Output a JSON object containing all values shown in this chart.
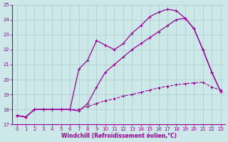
{
  "xlabel": "Windchill (Refroidissement éolien,°C)",
  "xlim": [
    -0.5,
    23.5
  ],
  "ylim": [
    17,
    25
  ],
  "xticks": [
    0,
    1,
    2,
    3,
    4,
    5,
    6,
    7,
    8,
    9,
    10,
    11,
    12,
    13,
    14,
    15,
    16,
    17,
    18,
    19,
    20,
    21,
    22,
    23
  ],
  "yticks": [
    17,
    18,
    19,
    20,
    21,
    22,
    23,
    24,
    25
  ],
  "bg_color": "#cce8e8",
  "grid_color": "#aacccc",
  "line_color": "#990099",
  "line1_x": [
    0,
    1,
    2,
    3,
    4,
    5,
    6,
    7,
    8,
    9,
    10,
    11,
    12,
    13,
    14,
    15,
    16,
    17,
    18,
    19,
    20,
    21,
    22,
    23
  ],
  "line1_y": [
    17.6,
    17.5,
    18.0,
    18.0,
    18.0,
    18.0,
    18.0,
    18.0,
    18.2,
    18.4,
    18.6,
    18.7,
    18.9,
    19.0,
    19.15,
    19.3,
    19.45,
    19.55,
    19.65,
    19.72,
    19.78,
    19.82,
    19.5,
    19.3
  ],
  "line2_x": [
    0,
    1,
    2,
    3,
    4,
    5,
    6,
    7,
    8,
    9,
    10,
    11,
    12,
    13,
    14,
    15,
    16,
    17,
    18,
    19,
    20,
    21,
    22,
    23
  ],
  "line2_y": [
    17.6,
    17.5,
    18.0,
    18.0,
    18.0,
    18.0,
    18.0,
    20.7,
    21.3,
    22.6,
    22.3,
    22.0,
    22.4,
    23.1,
    23.6,
    24.2,
    24.5,
    24.7,
    24.6,
    24.1,
    23.4,
    22.0,
    20.5,
    19.2
  ],
  "line3_x": [
    0,
    1,
    2,
    3,
    4,
    5,
    6,
    7,
    8,
    9,
    10,
    11,
    12,
    13,
    14,
    15,
    16,
    17,
    18,
    19,
    20,
    21,
    22,
    23
  ],
  "line3_y": [
    17.6,
    17.5,
    18.0,
    18.0,
    18.0,
    18.0,
    18.0,
    17.9,
    18.4,
    19.5,
    20.5,
    21.0,
    21.5,
    22.0,
    22.4,
    22.8,
    23.2,
    23.6,
    24.0,
    24.1,
    23.4,
    22.0,
    20.5,
    19.2
  ]
}
